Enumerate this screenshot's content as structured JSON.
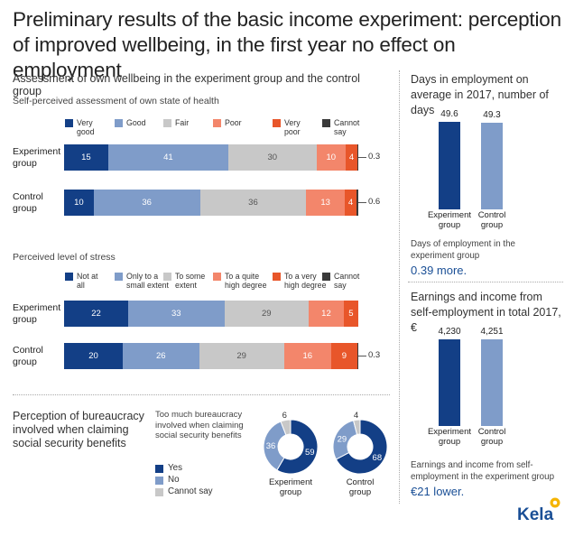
{
  "title": "Preliminary results of the basic income experiment: perception of improved wellbeing, in the first year no effect on employment",
  "colors": {
    "dark_blue": "#133f86",
    "mid_blue": "#7f9cc9",
    "grey": "#c8c8c8",
    "light_orange": "#f3866b",
    "orange": "#e8562a",
    "black": "#3a3a3a"
  },
  "wellbeing": {
    "heading": "Assessment of own wellbeing in the experiment group and the control group",
    "health": {
      "subtitle": "Self-perceived assessment of own state of health",
      "legend": [
        "Very good",
        "Good",
        "Fair",
        "Poor",
        "Very poor",
        "Cannot say"
      ],
      "legend_lines": [
        [
          "Very",
          "good"
        ],
        [
          "Good"
        ],
        [
          "Fair"
        ],
        [
          "Poor"
        ],
        [
          "Very",
          "poor"
        ],
        [
          "Cannot",
          "say"
        ]
      ]
    },
    "stress": {
      "subtitle": "Perceived level of stress",
      "legend": [
        "Not at all",
        "Only to a small extent",
        "To some extent",
        "To a quite high degree",
        "To a very high degree",
        "Cannot say"
      ],
      "legend_lines": [
        [
          "Not at",
          "all"
        ],
        [
          "Only to a",
          "small extent"
        ],
        [
          "To some",
          "extent"
        ],
        [
          "To a quite",
          "high degree"
        ],
        [
          "To a very",
          "high degree"
        ],
        [
          "Cannot",
          "say"
        ]
      ]
    }
  },
  "bureaucracy": {
    "heading": "Perception of bureaucracy involved when claiming social security benefits",
    "question": "Too much bureaucracy involved when claiming social security benefits",
    "legend": [
      "Yes",
      "No",
      "Cannot say"
    ]
  },
  "days": {
    "heading": "Days in employment on average in 2017, number of days",
    "note": "Days of employment in the experiment group",
    "highlight": "0.39 more."
  },
  "earnings": {
    "heading": "Earnings and income from self-employment in total 2017, €",
    "note": "Earnings and income from self-employment in the experiment group",
    "highlight": "€21 lower."
  },
  "logo": "Kela",
  "chart_data": [
    {
      "type": "bar",
      "subtype": "stacked-horizontal-percent",
      "title": "Self-perceived assessment of own state of health",
      "categories": [
        "Experiment group",
        "Control group"
      ],
      "series": [
        {
          "name": "Very good",
          "values": [
            15,
            10
          ]
        },
        {
          "name": "Good",
          "values": [
            41,
            36
          ]
        },
        {
          "name": "Fair",
          "values": [
            30,
            36
          ]
        },
        {
          "name": "Poor",
          "values": [
            10,
            13
          ]
        },
        {
          "name": "Very poor",
          "values": [
            4,
            4
          ]
        },
        {
          "name": "Cannot say",
          "values": [
            0.3,
            0.6
          ]
        }
      ]
    },
    {
      "type": "bar",
      "subtype": "stacked-horizontal-percent",
      "title": "Perceived level of stress",
      "categories": [
        "Experiment group",
        "Control group"
      ],
      "series": [
        {
          "name": "Not at all",
          "values": [
            22,
            20
          ]
        },
        {
          "name": "Only to a small extent",
          "values": [
            33,
            26
          ]
        },
        {
          "name": "To some extent",
          "values": [
            29,
            29
          ]
        },
        {
          "name": "To a quite high degree",
          "values": [
            12,
            16
          ]
        },
        {
          "name": "To a very high degree",
          "values": [
            5,
            9
          ]
        },
        {
          "name": "Cannot say",
          "values": [
            0,
            0.3
          ]
        }
      ]
    },
    {
      "type": "pie",
      "subtype": "donut",
      "title": "Too much bureaucracy involved when claiming social security benefits",
      "groups": [
        {
          "name": "Experiment group",
          "values": [
            {
              "label": "Yes",
              "value": 59
            },
            {
              "label": "No",
              "value": 36
            },
            {
              "label": "Cannot say",
              "value": 6
            }
          ]
        },
        {
          "name": "Control group",
          "values": [
            {
              "label": "Yes",
              "value": 68
            },
            {
              "label": "No",
              "value": 29
            },
            {
              "label": "Cannot say",
              "value": 4
            }
          ]
        }
      ]
    },
    {
      "type": "bar",
      "title": "Days in employment on average in 2017, number of days",
      "categories": [
        "Experiment group",
        "Control group"
      ],
      "values": [
        49.6,
        49.3
      ],
      "labels": [
        "49.6",
        "49.3"
      ],
      "ylim": [
        0,
        49.6
      ]
    },
    {
      "type": "bar",
      "title": "Earnings and income from self-employment in total 2017, €",
      "categories": [
        "Experiment group",
        "Control group"
      ],
      "values": [
        4230,
        4251
      ],
      "labels": [
        "4,230",
        "4,251"
      ],
      "ylim": [
        0,
        4251
      ]
    }
  ]
}
